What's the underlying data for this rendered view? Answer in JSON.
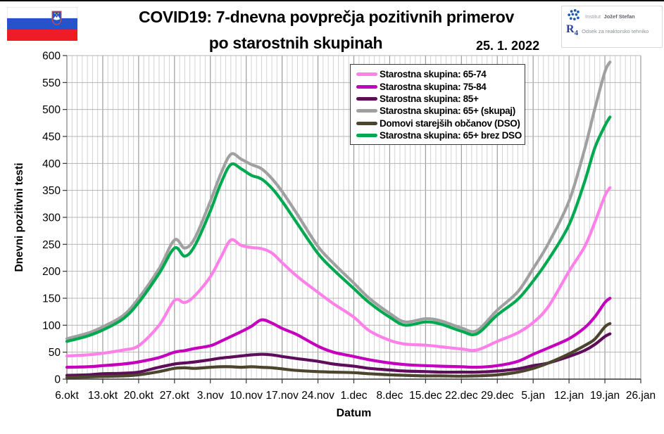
{
  "header": {
    "title_line1": "COVID19: 7-dnevna povprečja pozitivnih primerov",
    "title_line2": "po starostnih skupinah",
    "date": "25. 1. 2022",
    "institute_prefix": "Institut",
    "institute_name": "Jožef Stefan",
    "r4": "R4",
    "department": "Odsek za reaktorsko tehniko"
  },
  "chart_data": {
    "type": "line",
    "title": "COVID19: 7-dnevna povprečja pozitivnih primerov po starostnih skupinah",
    "subtitle_date": "25. 1. 2022",
    "xlabel": "Datum",
    "ylabel": "Dnevni pozitivni testi",
    "ylim": [
      0,
      600
    ],
    "ytick_step": 50,
    "grid": "daily vertical lines, weekly darker, horizontal every 50",
    "legend_position": "top center-right inside plot",
    "x_tick_labels": [
      "6.okt",
      "13.okt",
      "20.okt",
      "27.okt",
      "3.nov",
      "10.nov",
      "17.nov",
      "24.nov",
      "1.dec",
      "8.dec",
      "15.dec",
      "22.dec",
      "29.dec",
      "5.jan",
      "12.jan",
      "19.jan",
      "26.jan"
    ],
    "x_days_span": 112,
    "days": [
      0,
      4,
      7,
      11,
      14,
      18,
      21,
      23,
      25,
      28,
      30,
      32,
      34,
      36,
      38,
      40,
      42,
      45,
      49,
      52,
      56,
      59,
      63,
      66,
      70,
      73,
      77,
      80,
      84,
      88,
      91,
      94,
      98,
      101,
      103,
      105,
      106
    ],
    "series": [
      {
        "name": "Starostna skupina: 65-74",
        "color": "#ff80e8",
        "values": [
          43,
          45,
          48,
          54,
          62,
          100,
          146,
          142,
          155,
          190,
          225,
          258,
          248,
          244,
          242,
          234,
          216,
          190,
          161,
          140,
          115,
          90,
          72,
          65,
          63,
          60,
          56,
          54,
          70,
          86,
          105,
          135,
          200,
          245,
          290,
          340,
          355
        ]
      },
      {
        "name": "Starostna skupina: 75-84",
        "color": "#c400be",
        "values": [
          22,
          23,
          25,
          28,
          32,
          40,
          50,
          53,
          57,
          62,
          70,
          79,
          88,
          98,
          110,
          104,
          94,
          82,
          61,
          50,
          42,
          36,
          30,
          27,
          25,
          24,
          23,
          22,
          25,
          33,
          46,
          58,
          75,
          95,
          115,
          142,
          150
        ]
      },
      {
        "name": "Starostna skupina: 85+",
        "color": "#5e0d5b",
        "values": [
          7,
          8,
          10,
          11,
          13,
          22,
          28,
          30,
          32,
          36,
          39,
          41,
          43,
          45,
          46,
          45,
          42,
          38,
          33,
          28,
          24,
          20,
          17,
          15,
          14,
          13,
          13,
          13,
          15,
          19,
          25,
          30,
          42,
          53,
          64,
          79,
          84
        ]
      },
      {
        "name": "Starostna skupina: 65+ (skupaj)",
        "color": "#a0a0a0",
        "values": [
          75,
          85,
          97,
          118,
          150,
          205,
          258,
          243,
          262,
          330,
          380,
          417,
          408,
          398,
          390,
          372,
          348,
          305,
          246,
          215,
          178,
          150,
          122,
          106,
          112,
          108,
          95,
          90,
          128,
          162,
          205,
          252,
          330,
          425,
          500,
          570,
          588
        ]
      },
      {
        "name": "Domovi starejših občanov (DSO)",
        "color": "#4c452d",
        "values": [
          3,
          4,
          5,
          6,
          8,
          14,
          20,
          21,
          20,
          22,
          23,
          23,
          22,
          23,
          22,
          21,
          19,
          16,
          14,
          13,
          12,
          10,
          8,
          7,
          6,
          6,
          5.5,
          6,
          8,
          13,
          20,
          30,
          47,
          62,
          74,
          97,
          103
        ]
      },
      {
        "name": "Starostna skupina: 65+ brez DSO",
        "color": "#00a94f",
        "values": [
          70,
          80,
          91,
          112,
          142,
          196,
          243,
          228,
          248,
          312,
          362,
          398,
          390,
          378,
          371,
          354,
          330,
          288,
          233,
          203,
          168,
          142,
          115,
          100,
          106,
          102,
          89,
          84,
          119,
          148,
          182,
          222,
          286,
          365,
          428,
          470,
          486
        ]
      }
    ]
  }
}
